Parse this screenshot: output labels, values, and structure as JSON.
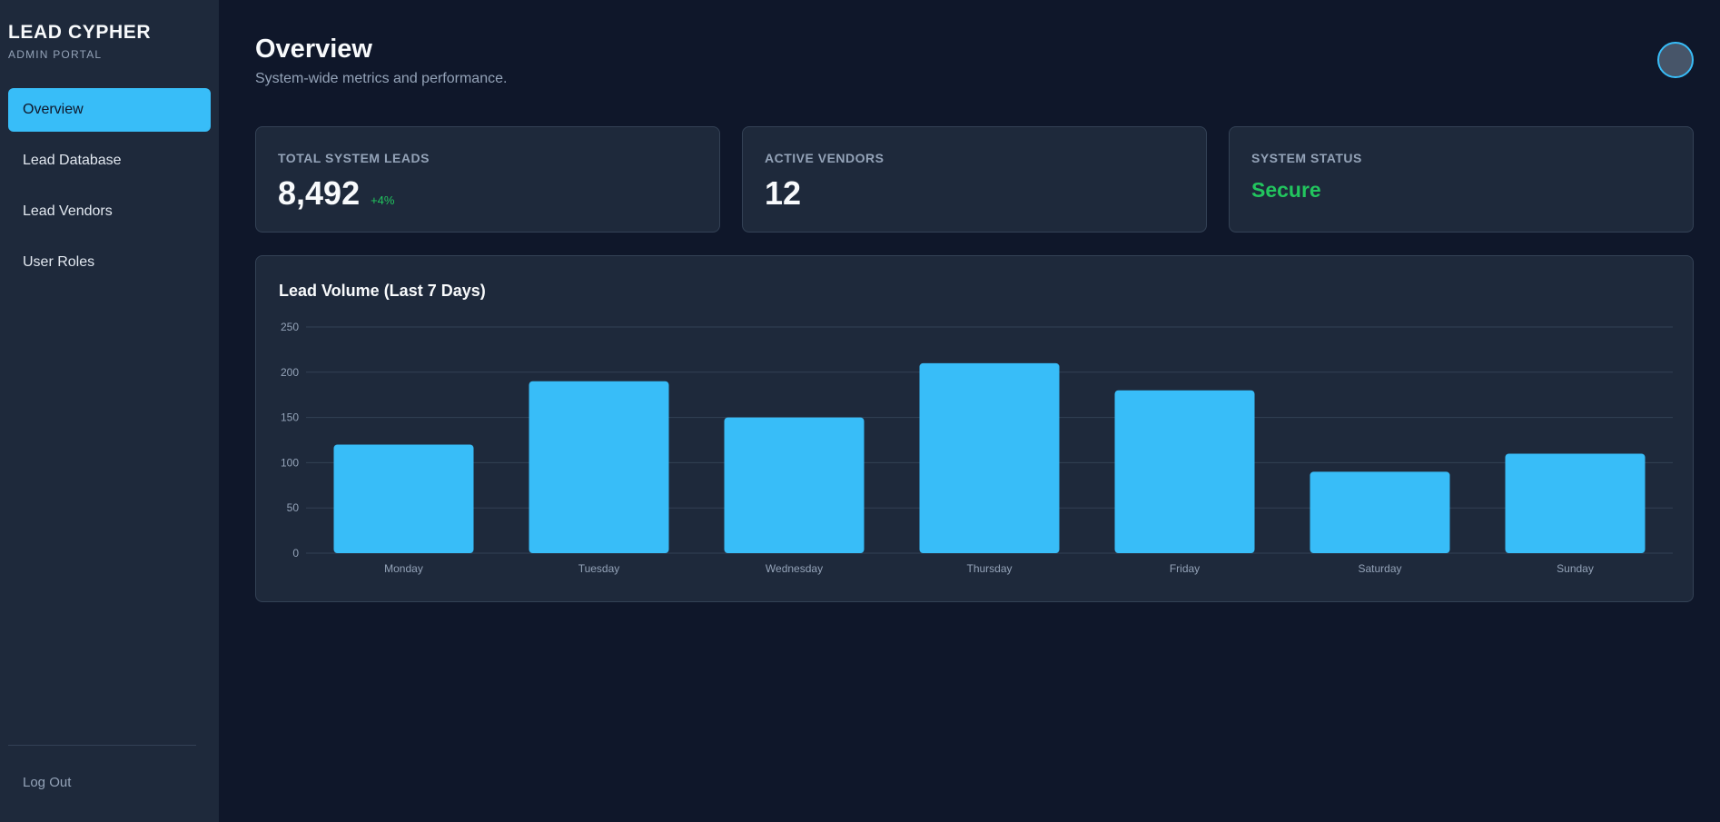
{
  "sidebar": {
    "brand_title": "LEAD CYPHER",
    "brand_subtitle": "ADMIN PORTAL",
    "items": [
      {
        "label": "Overview",
        "active": true
      },
      {
        "label": "Lead Database",
        "active": false
      },
      {
        "label": "Lead Vendors",
        "active": false
      },
      {
        "label": "User Roles",
        "active": false
      }
    ],
    "logout_label": "Log Out"
  },
  "header": {
    "title": "Overview",
    "subtitle": "System-wide metrics and performance."
  },
  "cards": {
    "total_leads": {
      "label": "TOTAL SYSTEM LEADS",
      "value": "8,492",
      "delta": "+4%"
    },
    "active_vendors": {
      "label": "ACTIVE VENDORS",
      "value": "12"
    },
    "system_status": {
      "label": "SYSTEM STATUS",
      "value": "Secure"
    }
  },
  "colors": {
    "accent": "#38bdf8",
    "success": "#22c55e",
    "background": "#0f172a",
    "panel": "#1e293b"
  },
  "chart_title": "Lead Volume (Last 7 Days)",
  "chart_data": {
    "type": "bar",
    "categories": [
      "Monday",
      "Tuesday",
      "Wednesday",
      "Thursday",
      "Friday",
      "Saturday",
      "Sunday"
    ],
    "values": [
      120,
      190,
      150,
      210,
      180,
      90,
      110
    ],
    "yticks": [
      "0",
      "50",
      "100",
      "150",
      "200",
      "250"
    ],
    "ylim": [
      0,
      250
    ],
    "grid": true,
    "bar_color": "#38bdf8"
  }
}
